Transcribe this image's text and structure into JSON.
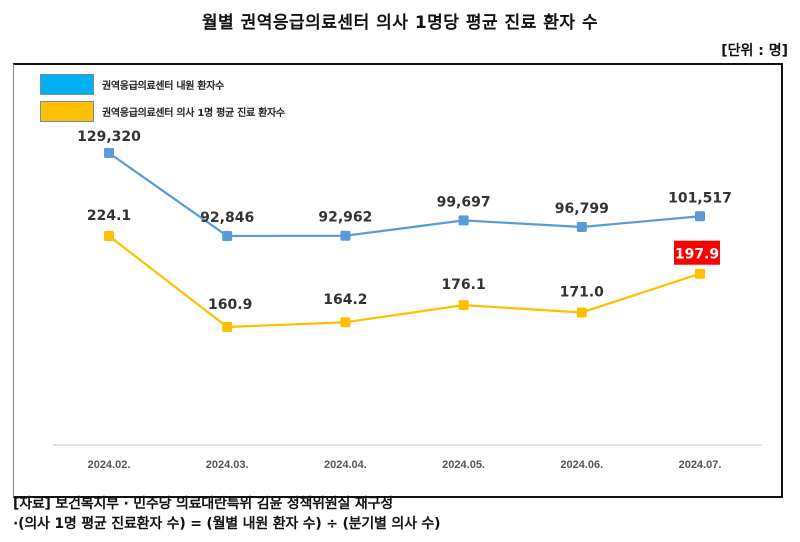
{
  "title": "월별 권역응급의료센터 의사 1명당 평균 진료 환자 수",
  "unit_label": "[단위 : 명]",
  "footnotes": [
    "[자료] 보건복지부 · 민주당 의료대란특위 김윤 정책위원실 재구성",
    "·(의사 1명 평균 진료환자 수) = (월별 내원 환자 수) ÷ (분기별 의사 수)"
  ],
  "chart_data": {
    "type": "line",
    "title": "월별 권역응급의료센터 의사 1명당 평균 진료 환자 수",
    "xlabel": "",
    "ylabel": "",
    "grid": false,
    "legend_position": "top-left",
    "categories": [
      "2024.02.",
      "2024.03.",
      "2024.04.",
      "2024.05.",
      "2024.06.",
      "2024.07."
    ],
    "series": [
      {
        "name": "권역응급의료센터 내원 환자수",
        "color": "#5b9bd5",
        "legend_color": "#00b0f0",
        "values": [
          129320,
          92846,
          92962,
          99697,
          96799,
          101517
        ],
        "labels": [
          "129,320",
          "92,846",
          "92,962",
          "99,697",
          "96,799",
          "101,517"
        ],
        "ylim": [
          0,
          230000
        ]
      },
      {
        "name": "권역응급의료센터 의사 1명 평균 진료 환자수",
        "color": "#ffc000",
        "legend_color": "#ffc000",
        "values": [
          224.1,
          160.9,
          164.2,
          176.1,
          171.0,
          197.9
        ],
        "labels": [
          "224.1",
          "160.9",
          "164.2",
          "176.1",
          "171.0",
          "197.9"
        ],
        "ylim": [
          0,
          380
        ],
        "highlight_index": 5,
        "highlight_color": "#ff0000"
      }
    ]
  }
}
